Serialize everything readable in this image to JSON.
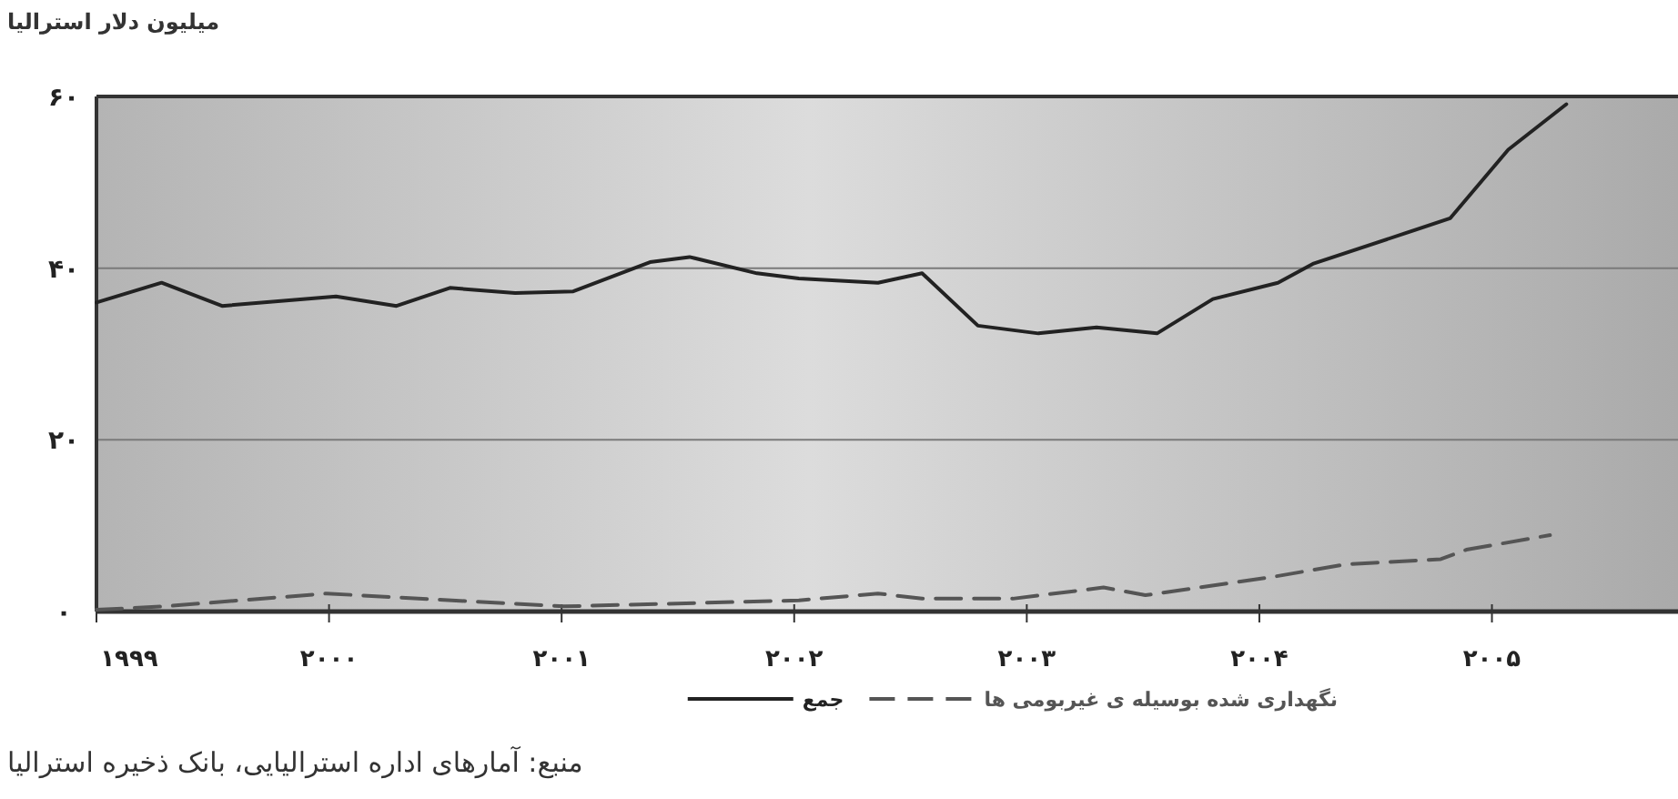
{
  "chart_data": {
    "type": "line",
    "ylabel": "میلیون دلار استرالیا",
    "xlim": [
      1999,
      2005.8
    ],
    "ylim": [
      0,
      60
    ],
    "xticks": [
      {
        "value": 1999,
        "label": "۱۹۹۹"
      },
      {
        "value": 2000,
        "label": "۲۰۰۰"
      },
      {
        "value": 2001,
        "label": "۲۰۰۱"
      },
      {
        "value": 2002,
        "label": "۲۰۰۲"
      },
      {
        "value": 2003,
        "label": "۲۰۰۳"
      },
      {
        "value": 2004,
        "label": "۲۰۰۴"
      },
      {
        "value": 2005,
        "label": "۲۰۰۵"
      }
    ],
    "yticks": [
      {
        "value": 0,
        "label": "۰"
      },
      {
        "value": 20,
        "label": "۲۰"
      },
      {
        "value": 40,
        "label": "۴۰"
      },
      {
        "value": 60,
        "label": "۶۰"
      }
    ],
    "grid": "y",
    "legend": "bottom",
    "series": [
      {
        "name": "نگهداری شده بوسیله ی غیربومی ها",
        "color": "#555555",
        "line_style": "dashed",
        "x": [
          1999.0,
          1999.29,
          1999.99,
          2001.01,
          2002.02,
          2002.36,
          2002.55,
          2002.94,
          2003.33,
          2003.51,
          2004.05,
          2004.37,
          2004.78,
          2004.89,
          2005.25
        ],
        "values": [
          0.2,
          0.6,
          2.1,
          0.6,
          1.3,
          2.1,
          1.5,
          1.5,
          2.8,
          1.9,
          4.0,
          5.5,
          6.1,
          7.2,
          8.9
        ]
      },
      {
        "name": "جمع",
        "color": "#222222",
        "line_style": "solid",
        "x": [
          1999.0,
          1999.28,
          1999.54,
          2000.03,
          2000.29,
          2000.52,
          2000.8,
          2001.05,
          2001.38,
          2001.55,
          2001.84,
          2002.02,
          2002.36,
          2002.55,
          2002.79,
          2003.05,
          2003.3,
          2003.56,
          2003.8,
          2004.08,
          2004.23,
          2004.82,
          2005.07,
          2005.32
        ],
        "values": [
          36.0,
          38.3,
          35.6,
          36.7,
          35.6,
          37.7,
          37.1,
          37.3,
          40.7,
          41.3,
          39.4,
          38.8,
          38.3,
          39.4,
          33.3,
          32.4,
          33.1,
          32.4,
          36.4,
          38.3,
          40.5,
          45.8,
          53.8,
          59.1
        ]
      }
    ],
    "annotations": [
      "منبع: آمارهای اداره استرالیایی، بانک ذخیره استرالیا"
    ]
  }
}
